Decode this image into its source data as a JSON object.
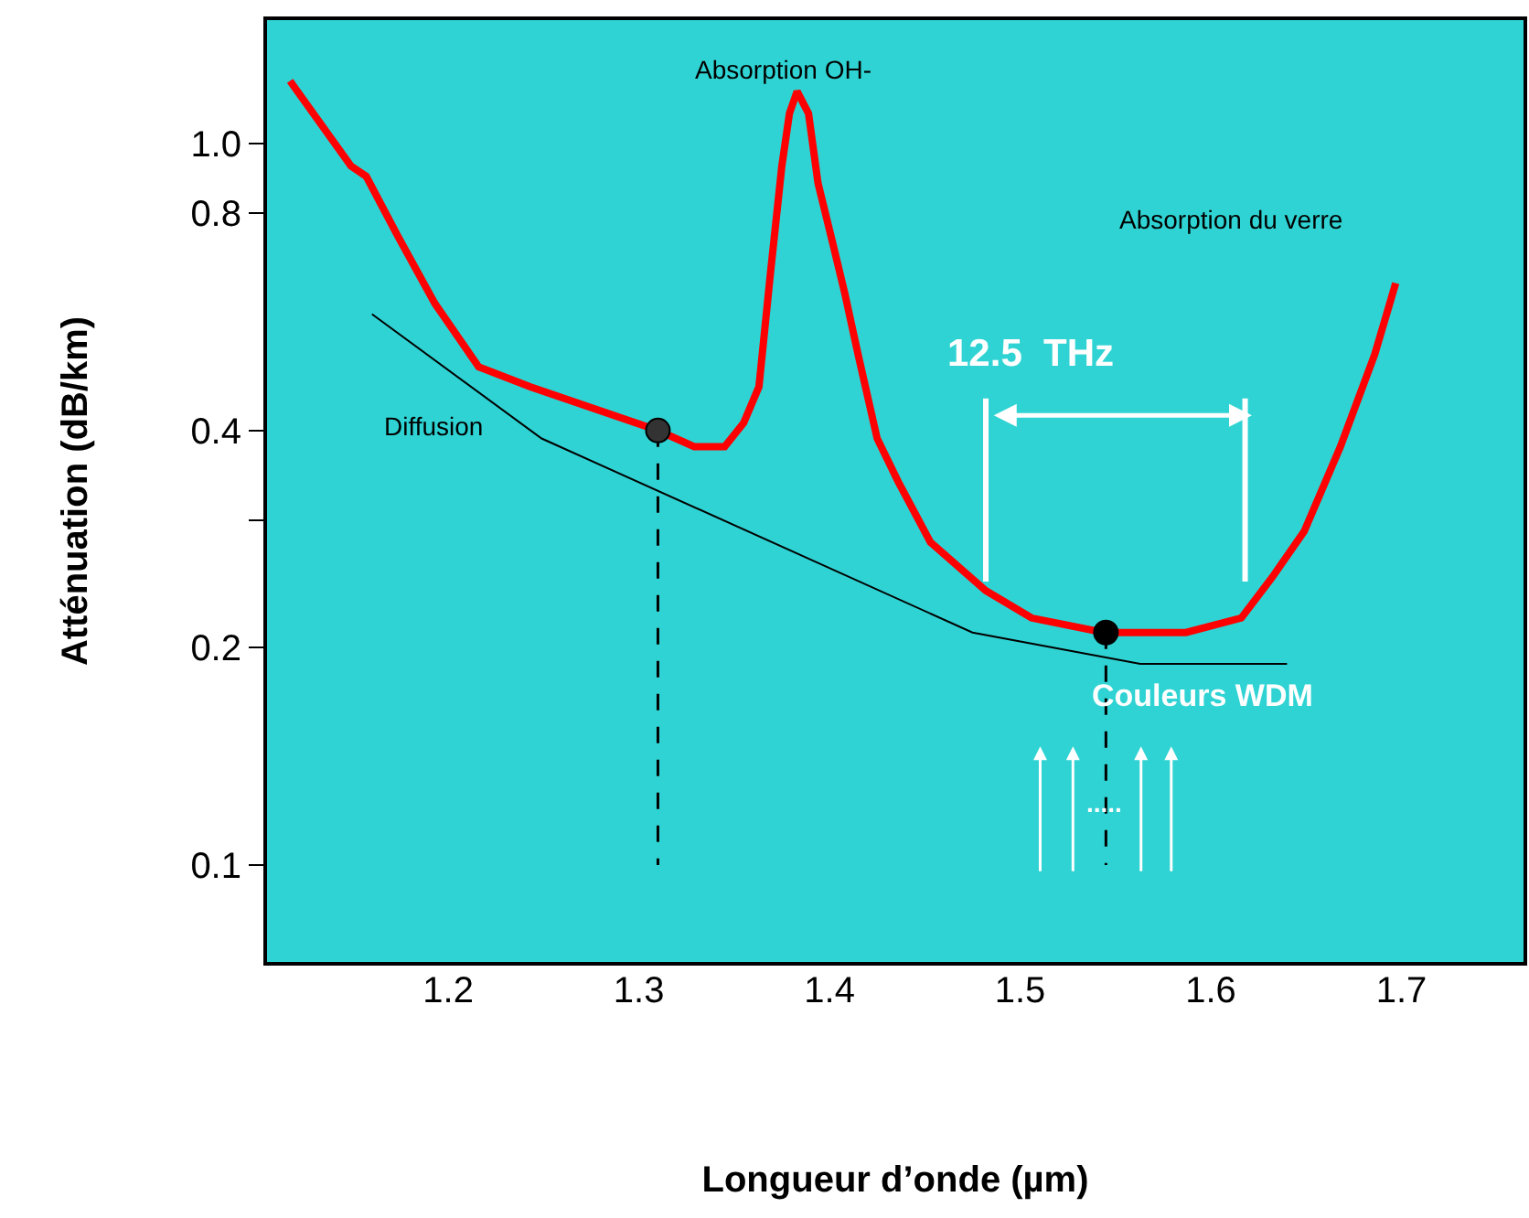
{
  "chart_data": {
    "type": "line",
    "xlabel": "Longueur d’onde (µm)",
    "ylabel": "Atténuation (dB/km)",
    "log": "y",
    "xlim": [
      1.104,
      1.765
    ],
    "xticks": [
      1.2,
      1.3,
      1.4,
      1.5,
      1.6,
      1.7
    ],
    "ylim": [
      0.073,
      1.49
    ],
    "yticks": [
      0.1,
      0.2,
      {
        "value": 0.3,
        "label": null
      },
      0.4,
      0.8,
      {
        "value": 1.0,
        "label": "1.0"
      }
    ],
    "grid": false,
    "series": [
      {
        "color": "#ff0000",
        "marker": "none",
        "line_style": "solid",
        "x": [
          1.117,
          1.149,
          1.157,
          1.174,
          1.193,
          1.216,
          1.243,
          1.31,
          1.329,
          1.345,
          1.355,
          1.363,
          1.369,
          1.375,
          1.379,
          1.383,
          1.389,
          1.394,
          1.401,
          1.408,
          1.415,
          1.425,
          1.436,
          1.453,
          1.482,
          1.506,
          1.544,
          1.559,
          1.587,
          1.616,
          1.632,
          1.649,
          1.668,
          1.686,
          1.697
        ],
        "values": [
          1.22,
          0.93,
          0.9,
          0.74,
          0.6,
          0.49,
          0.46,
          0.4,
          0.38,
          0.38,
          0.41,
          0.46,
          0.66,
          0.93,
          1.1,
          1.18,
          1.1,
          0.88,
          0.74,
          0.62,
          0.51,
          0.39,
          0.34,
          0.28,
          0.24,
          0.22,
          0.21,
          0.21,
          0.21,
          0.22,
          0.25,
          0.29,
          0.38,
          0.51,
          0.64
        ]
      },
      {
        "color": "#000000",
        "marker": "none",
        "line_style": "solid",
        "x": [
          1.16,
          1.249,
          1.475,
          1.563,
          1.64
        ],
        "values": [
          0.58,
          0.39,
          0.21,
          0.19,
          0.19
        ]
      },
      {
        "color": "#000000",
        "marker": "none",
        "line_style": "dashed",
        "x": [
          1.31,
          1.31
        ],
        "values": [
          0.4,
          0.1
        ]
      },
      {
        "color": "#000000",
        "marker": "none",
        "line_style": "dashed",
        "x": [
          1.545,
          1.545
        ],
        "values": [
          0.21,
          0.1
        ]
      },
      {
        "color": "#ffffff",
        "marker": "none",
        "line_style": "solid",
        "x": [
          1.482,
          1.482
        ],
        "values": [
          0.247,
          0.443
        ]
      },
      {
        "color": "#ffffff",
        "marker": "none",
        "line_style": "solid",
        "x": [
          1.618,
          1.618
        ],
        "values": [
          0.247,
          0.443
        ]
      },
      {
        "type": "scatter",
        "color": "#333333",
        "marker": "circle",
        "x": [
          1.31
        ],
        "values": [
          0.4
        ]
      },
      {
        "type": "scatter",
        "color": "#000000",
        "marker": "circle",
        "x": [
          1.545
        ],
        "values": [
          0.21
        ]
      }
    ],
    "annotations": [
      "Absorption OH-",
      "Absorption du verre",
      "Diffusion",
      "12.5  THz",
      "Couleurs WDM",
      "....."
    ]
  }
}
